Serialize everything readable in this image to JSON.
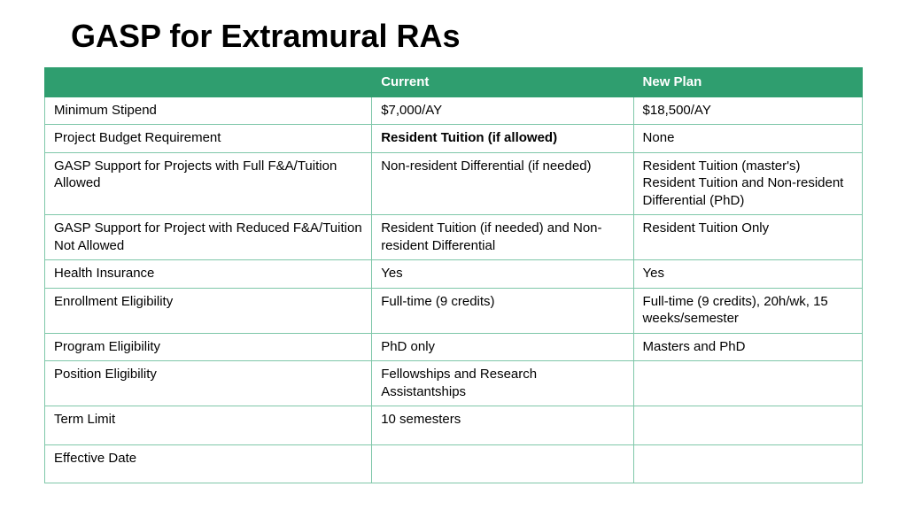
{
  "title": "GASP for Extramural RAs",
  "table": {
    "type": "table",
    "header_bg": "#2f9e6f",
    "header_color": "#ffffff",
    "border_color": "#7fc7a9",
    "columns": [
      "",
      "Current",
      "New Plan"
    ],
    "rows": [
      {
        "label": "Minimum Stipend",
        "current": "$7,000/AY",
        "newplan": "$18,500/AY",
        "bold_current": false
      },
      {
        "label": "Project Budget Requirement",
        "current": "Resident Tuition (if allowed)",
        "newplan": "None",
        "bold_current": true
      },
      {
        "label": "GASP Support for Projects with Full F&A/Tuition Allowed",
        "current": "Non-resident Differential (if needed)",
        "newplan": "Resident Tuition (master's) Resident Tuition and Non-resident Differential (PhD)",
        "bold_current": false
      },
      {
        "label": "GASP Support for Project with Reduced F&A/Tuition Not Allowed",
        "current": "Resident Tuition (if needed) and Non-resident  Differential",
        "newplan": "Resident Tuition Only",
        "bold_current": false
      },
      {
        "label": "Health Insurance",
        "current": "Yes",
        "newplan": "Yes",
        "bold_current": false
      },
      {
        "label": "Enrollment Eligibility",
        "current": "Full-time (9 credits)",
        "newplan": "Full-time (9 credits), 20h/wk, 15 weeks/semester",
        "bold_current": false
      },
      {
        "label": "Program Eligibility",
        "current": "PhD only",
        "newplan": "Masters and PhD",
        "bold_current": false
      },
      {
        "label": "Position Eligibility",
        "current": "Fellowships and Research Assistantships",
        "newplan": "",
        "bold_current": false
      },
      {
        "label": "Term Limit",
        "current": "10 semesters",
        "newplan": "",
        "bold_current": false,
        "tall": true
      },
      {
        "label": "Effective Date",
        "current": "",
        "newplan": "",
        "bold_current": false,
        "tall": true
      }
    ]
  }
}
